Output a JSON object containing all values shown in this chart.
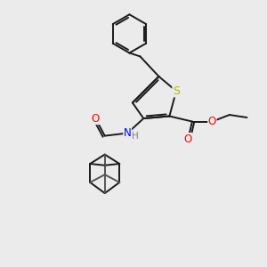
{
  "background_color": "#ebebeb",
  "atom_colors": {
    "S": "#b8b800",
    "O": "#ff0000",
    "N": "#0000ff",
    "C": "#000000",
    "H": "#808080"
  },
  "bond_lw": 1.4,
  "font_size": 8.5
}
